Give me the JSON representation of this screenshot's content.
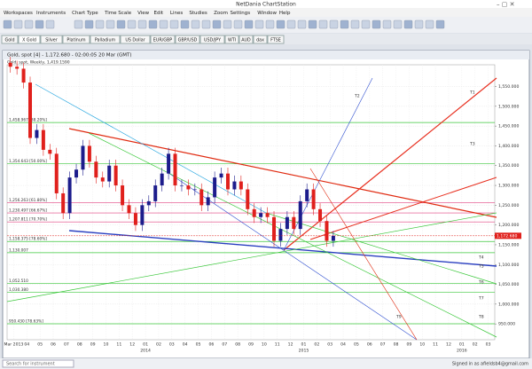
{
  "window_title": "NetDania ChartStation",
  "menu": [
    "Workspaces",
    "Instruments",
    "Chart Type",
    "Time Scale",
    "View",
    "Edit",
    "Lines",
    "Studies",
    "Zoom",
    "Settings",
    "Window",
    "Help"
  ],
  "tabs": [
    "Gold",
    "X Gold",
    "Silver",
    "Platinum",
    "Palladium",
    "US Dollar",
    "EUR/GBP",
    "GBP/USD",
    "USD/JPY",
    "WTI",
    "AUD",
    "dax",
    "FTSE"
  ],
  "chart_window_title": "Gold, spot [4] - 1,172.680 - 02:00:05 20 Mar (GMT)",
  "chart_header": "Gold, spot, Weekly, 1,419.1590",
  "line_labels": [
    "T1",
    "T2",
    "T3",
    "T4",
    "T5",
    "T6",
    "T7",
    "T8",
    "T9"
  ],
  "status": {
    "search": "Search for instrument",
    "signed_in": "Signed in as afieldsb4@gmail.com"
  },
  "chart_data": {
    "type": "candlestick",
    "open": [
      1610,
      1600,
      1595,
      1560,
      1420,
      1440,
      1390,
      1380,
      1280,
      1230,
      1320,
      1340,
      1400,
      1360,
      1320,
      1310,
      1350,
      1300,
      1250,
      1230,
      1200,
      1250,
      1260,
      1300,
      1330,
      1380,
      1300,
      1300,
      1290,
      1290,
      1250,
      1270,
      1320,
      1330,
      1290,
      1310,
      1290,
      1240,
      1220,
      1230,
      1220,
      1160,
      1190,
      1220,
      1190,
      1260,
      1290,
      1240,
      1210,
      1160
    ],
    "high": [
      1625,
      1615,
      1610,
      1575,
      1455,
      1455,
      1405,
      1395,
      1295,
      1335,
      1355,
      1415,
      1415,
      1375,
      1335,
      1365,
      1365,
      1315,
      1265,
      1245,
      1265,
      1275,
      1315,
      1345,
      1395,
      1395,
      1315,
      1315,
      1305,
      1305,
      1285,
      1335,
      1345,
      1345,
      1325,
      1325,
      1305,
      1255,
      1245,
      1245,
      1235,
      1205,
      1235,
      1235,
      1275,
      1305,
      1305,
      1255,
      1225,
      1185
    ],
    "low": [
      1585,
      1580,
      1545,
      1405,
      1405,
      1375,
      1365,
      1265,
      1215,
      1215,
      1305,
      1325,
      1345,
      1305,
      1295,
      1295,
      1285,
      1235,
      1215,
      1185,
      1185,
      1235,
      1245,
      1285,
      1315,
      1285,
      1285,
      1275,
      1275,
      1235,
      1235,
      1255,
      1305,
      1275,
      1275,
      1275,
      1225,
      1205,
      1205,
      1205,
      1145,
      1145,
      1175,
      1175,
      1175,
      1245,
      1225,
      1195,
      1145,
      1145
    ],
    "close": [
      1600,
      1595,
      1560,
      1420,
      1440,
      1390,
      1380,
      1280,
      1230,
      1320,
      1340,
      1400,
      1360,
      1320,
      1310,
      1350,
      1300,
      1250,
      1230,
      1200,
      1250,
      1260,
      1300,
      1330,
      1380,
      1300,
      1300,
      1290,
      1290,
      1250,
      1270,
      1320,
      1330,
      1290,
      1310,
      1290,
      1240,
      1220,
      1230,
      1220,
      1160,
      1190,
      1220,
      1190,
      1260,
      1290,
      1240,
      1210,
      1160,
      1172.68
    ],
    "up_color": "#1c1c8c",
    "down_color": "#e0201c",
    "ylim": [
      910,
      1605
    ],
    "yticks": [
      {
        "value": 950,
        "label": "950.000"
      },
      {
        "value": 1000,
        "label": "1,000.000"
      },
      {
        "value": 1050,
        "label": "1,050.000"
      },
      {
        "value": 1100,
        "label": "1,100.000"
      },
      {
        "value": 1150,
        "label": "1,150.000"
      },
      {
        "value": 1200,
        "label": "1,200.000"
      },
      {
        "value": 1250,
        "label": "1,250.000"
      },
      {
        "value": 1300,
        "label": "1,300.000"
      },
      {
        "value": 1350,
        "label": "1,350.000"
      },
      {
        "value": 1400,
        "label": "1,400.000"
      },
      {
        "value": 1450,
        "label": "1,450.000"
      },
      {
        "value": 1500,
        "label": "1,500.000"
      },
      {
        "value": 1550,
        "label": "1,550.000"
      }
    ],
    "x_labels": [
      "Mar 2013",
      "04",
      "05",
      "06",
      "07",
      "08",
      "09",
      "10",
      "11",
      "12",
      "01",
      "02",
      "03",
      "04",
      "05",
      "06",
      "07",
      "08",
      "09",
      "10",
      "11",
      "12",
      "01",
      "02",
      "03",
      "04",
      "05",
      "06",
      "07",
      "08",
      "09",
      "10",
      "11",
      "12",
      "01",
      "02",
      "03"
    ],
    "year_labels": [
      null,
      null,
      null,
      null,
      null,
      null,
      null,
      null,
      null,
      null,
      "2014",
      null,
      null,
      null,
      null,
      null,
      null,
      null,
      null,
      null,
      null,
      null,
      "2015",
      null,
      null,
      null,
      null,
      null,
      null,
      null,
      null,
      null,
      null,
      null,
      "2016",
      null,
      null
    ],
    "last": {
      "value": 1172.68,
      "label": "1,172.680"
    },
    "levels": [
      {
        "value": 1458.967,
        "label": "1,458.967 [38.20%]",
        "color": "#3cc83c"
      },
      {
        "value": 1354.643,
        "label": "1,354.643 [50.00%]",
        "color": "#3cc83c"
      },
      {
        "value": 1256.263,
        "label": "1,256.263 [61.80%]",
        "color": "#e04080"
      },
      {
        "value": 1230.497,
        "label": "1,230.497 [66.67%]",
        "color": "#e04080"
      },
      {
        "value": 1207.811,
        "label": "1,207.811 [70.70%]",
        "color": "#e04080"
      },
      {
        "value": 1158.375,
        "label": "1,158.375 [78.60%]",
        "color": "#3cc83c"
      },
      {
        "value": 1130.007,
        "label": "1,130.007",
        "color": "#3cc83c"
      },
      {
        "value": 1052.51,
        "label": "1,052.510",
        "color": "#3cc83c"
      },
      {
        "value": 1030.38,
        "label": "1,030.380",
        "color": "#3cc83c"
      },
      {
        "value": 950.43,
        "label": "950.430 [78.63%]",
        "color": "#3cc83c"
      }
    ],
    "grid": true
  }
}
